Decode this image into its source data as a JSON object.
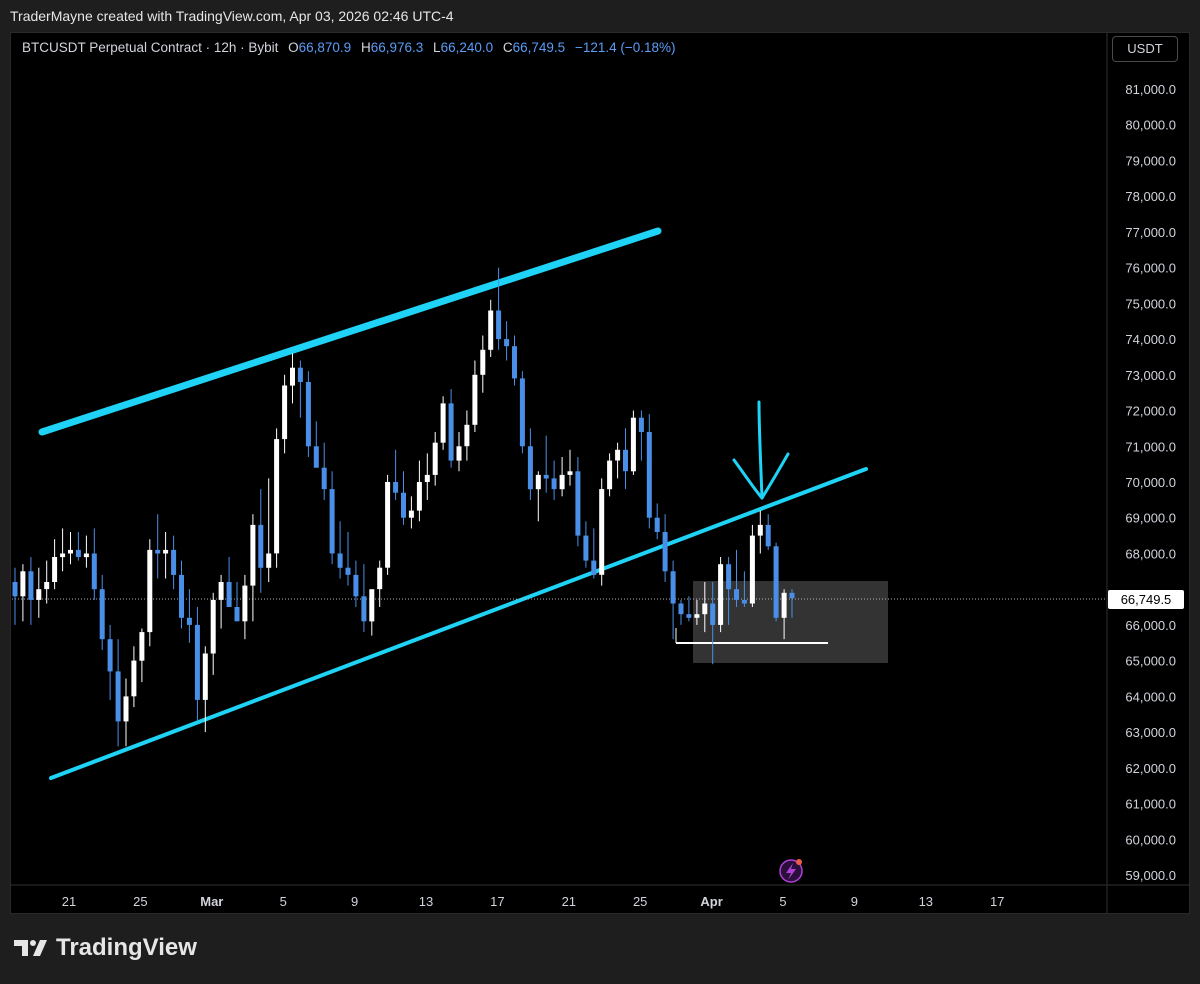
{
  "header": {
    "credit": "TraderMayne created with TradingView.com, Apr 03, 2026 02:46 UTC-4"
  },
  "symbol_bar": {
    "title": "BTCUSDT Perpetual Contract · 12h · Bybit",
    "o_label": "O",
    "o_value": "66,870.9",
    "h_label": "H",
    "h_value": "66,976.3",
    "l_label": "L",
    "l_value": "66,240.0",
    "c_label": "C",
    "c_value": "66,749.5",
    "change": "−121.4 (−0.18%)"
  },
  "currency_button": "USDT",
  "footer": {
    "brand": "TradingView",
    "logo_icon": "tradingview-logo-icon"
  },
  "colors": {
    "up": "#ffffff",
    "down": "#4a8fe7",
    "trendline": "#1ed3f5",
    "price_badge_bg": "#ffffff",
    "price_badge_text": "#000000"
  },
  "chart_data": {
    "type": "candlestick",
    "symbol": "BTCUSDT",
    "interval": "12h",
    "exchange": "Bybit",
    "ylim": [
      59000,
      81000
    ],
    "y_ticks": [
      "59,000.0",
      "60,000.0",
      "61,000.0",
      "62,000.0",
      "63,000.0",
      "64,000.0",
      "65,000.0",
      "66,000.0",
      "67,000.0",
      "68,000.0",
      "69,000.0",
      "70,000.0",
      "71,000.0",
      "72,000.0",
      "73,000.0",
      "74,000.0",
      "75,000.0",
      "76,000.0",
      "77,000.0",
      "78,000.0",
      "79,000.0",
      "80,000.0",
      "81,000.0"
    ],
    "x_ticks": [
      "21",
      "25",
      "Mar",
      "5",
      "9",
      "13",
      "17",
      "21",
      "25",
      "Apr",
      "5",
      "9",
      "13",
      "17"
    ],
    "current_price": "66,749.5",
    "candles": [
      [
        67200,
        67600,
        66000,
        66800
      ],
      [
        66800,
        67700,
        66100,
        67500
      ],
      [
        67500,
        67900,
        66000,
        66700
      ],
      [
        66700,
        67600,
        66200,
        67000
      ],
      [
        67000,
        67800,
        66600,
        67200
      ],
      [
        67200,
        68400,
        67000,
        67900
      ],
      [
        67900,
        68700,
        67500,
        68000
      ],
      [
        68000,
        68600,
        67700,
        68100
      ],
      [
        68100,
        68600,
        67800,
        67900
      ],
      [
        67900,
        68500,
        67600,
        68000
      ],
      [
        68000,
        68700,
        66700,
        67000
      ],
      [
        67000,
        67400,
        65300,
        65600
      ],
      [
        65600,
        66000,
        63900,
        64700
      ],
      [
        64700,
        65600,
        62600,
        63300
      ],
      [
        63300,
        64500,
        62600,
        64000
      ],
      [
        64000,
        65400,
        63700,
        65000
      ],
      [
        65000,
        65900,
        64400,
        65800
      ],
      [
        65800,
        68400,
        65400,
        68100
      ],
      [
        68100,
        69100,
        67300,
        68000
      ],
      [
        68000,
        68600,
        67300,
        68100
      ],
      [
        68100,
        68500,
        67000,
        67400
      ],
      [
        67400,
        67800,
        65900,
        66200
      ],
      [
        66200,
        67000,
        65500,
        66000
      ],
      [
        66000,
        66500,
        63300,
        63900
      ],
      [
        63900,
        65400,
        63000,
        65200
      ],
      [
        65200,
        66900,
        64600,
        66700
      ],
      [
        66700,
        67400,
        65900,
        67200
      ],
      [
        67200,
        67900,
        66600,
        66500
      ],
      [
        66500,
        67200,
        66100,
        66100
      ],
      [
        66100,
        67400,
        65600,
        67100
      ],
      [
        67100,
        69100,
        66100,
        68800
      ],
      [
        68800,
        69800,
        66900,
        67600
      ],
      [
        67600,
        70100,
        67200,
        68000
      ],
      [
        68000,
        71500,
        67600,
        71200
      ],
      [
        71200,
        73000,
        70800,
        72700
      ],
      [
        72700,
        73600,
        72200,
        73200
      ],
      [
        73200,
        73400,
        71800,
        72800
      ],
      [
        72800,
        73100,
        70700,
        71000
      ],
      [
        71000,
        71700,
        70400,
        70400
      ],
      [
        70400,
        71100,
        69500,
        69800
      ],
      [
        69800,
        70300,
        67700,
        68000
      ],
      [
        68000,
        68900,
        67300,
        67600
      ],
      [
        67600,
        68600,
        67100,
        67400
      ],
      [
        67400,
        67800,
        66500,
        66800
      ],
      [
        66800,
        67700,
        65800,
        66100
      ],
      [
        66100,
        66900,
        65700,
        67000
      ],
      [
        67000,
        67800,
        66500,
        67600
      ],
      [
        67600,
        70200,
        67400,
        70000
      ],
      [
        70000,
        70900,
        69500,
        69700
      ],
      [
        69700,
        70300,
        68800,
        69000
      ],
      [
        69000,
        69600,
        68700,
        69200
      ],
      [
        69200,
        70600,
        68900,
        70000
      ],
      [
        70000,
        70800,
        69500,
        70200
      ],
      [
        70200,
        71400,
        69900,
        71100
      ],
      [
        71100,
        72400,
        70900,
        72200
      ],
      [
        72200,
        72600,
        70400,
        70600
      ],
      [
        70600,
        71400,
        70300,
        71000
      ],
      [
        71000,
        72000,
        70600,
        71600
      ],
      [
        71600,
        73400,
        71400,
        73000
      ],
      [
        73000,
        74100,
        72500,
        73700
      ],
      [
        73700,
        75100,
        73500,
        74800
      ],
      [
        74800,
        76000,
        73700,
        74000
      ],
      [
        74000,
        74500,
        73400,
        73800
      ],
      [
        73800,
        74100,
        72700,
        72900
      ],
      [
        72900,
        73100,
        70800,
        71000
      ],
      [
        71000,
        71500,
        69500,
        69800
      ],
      [
        69800,
        70300,
        68900,
        70200
      ],
      [
        70200,
        71300,
        69700,
        70100
      ],
      [
        70100,
        70600,
        69500,
        69800
      ],
      [
        69800,
        70700,
        69600,
        70200
      ],
      [
        70200,
        70900,
        69900,
        70300
      ],
      [
        70300,
        70700,
        68200,
        68500
      ],
      [
        68500,
        68900,
        67600,
        67800
      ],
      [
        67800,
        68700,
        67300,
        67400
      ],
      [
        67400,
        70100,
        67100,
        69800
      ],
      [
        69800,
        70800,
        69600,
        70600
      ],
      [
        70600,
        71100,
        70100,
        70900
      ],
      [
        70900,
        71500,
        69800,
        70300
      ],
      [
        70300,
        72000,
        70200,
        71800
      ],
      [
        71800,
        72000,
        70600,
        71400
      ],
      [
        71400,
        71900,
        68700,
        69000
      ],
      [
        69000,
        69400,
        68400,
        68600
      ],
      [
        68600,
        69100,
        67200,
        67500
      ],
      [
        67500,
        67800,
        65600,
        66600
      ],
      [
        66600,
        66700,
        66000,
        66300
      ],
      [
        66300,
        66800,
        66100,
        66200
      ],
      [
        66200,
        66700,
        66000,
        66300
      ],
      [
        66300,
        67200,
        65800,
        66600
      ],
      [
        66600,
        67200,
        64900,
        66000
      ],
      [
        66000,
        67900,
        65800,
        67700
      ],
      [
        67700,
        67900,
        66000,
        67000
      ],
      [
        67000,
        68100,
        66500,
        66700
      ],
      [
        66700,
        67500,
        66500,
        66600
      ],
      [
        66600,
        68800,
        66500,
        68500
      ],
      [
        68500,
        69200,
        68000,
        68800
      ],
      [
        68800,
        69100,
        68100,
        68200
      ],
      [
        68200,
        68300,
        66100,
        66200
      ],
      [
        66200,
        67000,
        65600,
        66900
      ],
      [
        66900,
        67000,
        66200,
        66750
      ]
    ],
    "trendlines": [
      {
        "name": "upper-channel",
        "points": [
          [
            "Feb 17",
            71500
          ],
          [
            "Mar 25",
            77000
          ]
        ]
      },
      {
        "name": "lower-channel",
        "points": [
          [
            "Feb 17",
            61700
          ],
          [
            "Apr 8",
            70300
          ]
        ]
      }
    ],
    "annotations": [
      "support-range-box",
      "support-level-line",
      "hand-drawn-down-arrow",
      "price-line"
    ]
  }
}
